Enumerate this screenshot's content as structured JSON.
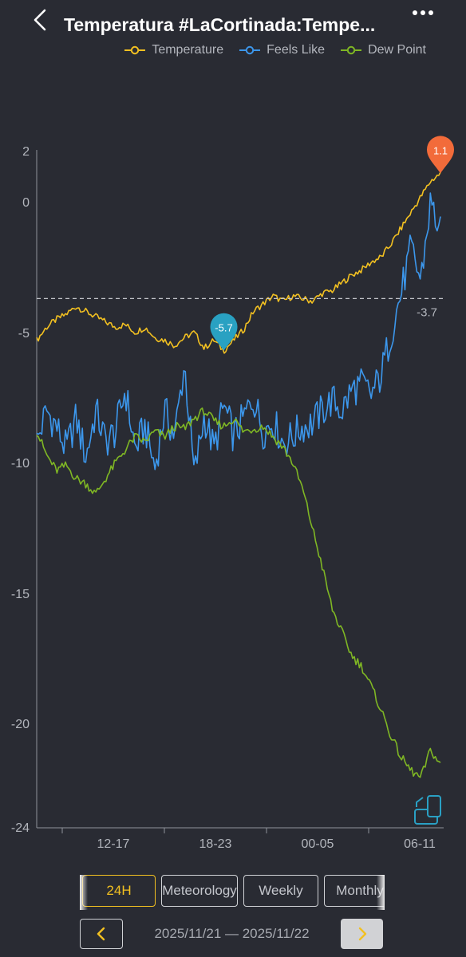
{
  "header": {
    "title": "Temperatura #LaCortinada:Tempe..."
  },
  "legend": [
    {
      "label": "Temperature",
      "color": "#f2c021"
    },
    {
      "label": "Feels Like",
      "color": "#3c97ec"
    },
    {
      "label": "Dew Point",
      "color": "#7fb724"
    }
  ],
  "chart_data": {
    "type": "line",
    "ylim": [
      -24,
      2
    ],
    "y_ticks": [
      "2",
      "0",
      "-5",
      "-10",
      "-15",
      "-20",
      "-24"
    ],
    "x_ticks": [
      "12-17",
      "18-23",
      "00-05",
      "06-11"
    ],
    "reference_line": {
      "value": -3.7,
      "label": "-3.7"
    },
    "markers": {
      "max": {
        "label": "1.1",
        "value": 1.1,
        "color": "#f26b3a"
      },
      "min": {
        "label": "-5.7",
        "value": -5.7,
        "color": "#29a1c2"
      }
    },
    "series": [
      {
        "name": "Temperature",
        "color": "#f2c021",
        "values": [
          -5.3,
          -4.8,
          -4.5,
          -4.3,
          -4.0,
          -4.2,
          -4.4,
          -4.6,
          -4.8,
          -4.7,
          -5.0,
          -4.8,
          -5.2,
          -5.3,
          -5.5,
          -5.2,
          -5.0,
          -5.6,
          -5.3,
          -5.7,
          -5.3,
          -4.9,
          -4.2,
          -3.9,
          -3.6,
          -3.8,
          -3.6,
          -3.7,
          -3.8,
          -3.5,
          -3.4,
          -3.1,
          -2.8,
          -2.6,
          -2.3,
          -2.1,
          -1.6,
          -1.0,
          -0.4,
          0.2,
          0.8,
          1.1
        ]
      },
      {
        "name": "Feels Like",
        "color": "#3c97ec",
        "values": [
          -9.2,
          -8.0,
          -8.6,
          -9.5,
          -8.3,
          -9.8,
          -8.0,
          -9.2,
          -8.8,
          -7.2,
          -9.5,
          -8.6,
          -10.2,
          -8.0,
          -9.0,
          -6.2,
          -10.5,
          -8.2,
          -9.5,
          -7.8,
          -9.0,
          -8.3,
          -7.5,
          -8.8,
          -8.4,
          -9.2,
          -9.0,
          -8.6,
          -8.5,
          -8.0,
          -7.6,
          -8.0,
          -7.2,
          -7.0,
          -7.4,
          -6.6,
          -5.0,
          -3.5,
          -1.8,
          -3.0,
          0.0,
          -1.2
        ]
      },
      {
        "name": "Dew Point",
        "color": "#7fb724",
        "values": [
          -8.8,
          -9.7,
          -10.3,
          -10.1,
          -10.6,
          -10.8,
          -11.2,
          -10.6,
          -10.0,
          -9.5,
          -9.0,
          -9.2,
          -8.8,
          -9.0,
          -8.6,
          -8.7,
          -8.3,
          -8.0,
          -8.4,
          -8.6,
          -8.3,
          -8.8,
          -8.7,
          -8.6,
          -9.0,
          -9.4,
          -10.0,
          -11.0,
          -12.5,
          -14.0,
          -15.6,
          -16.5,
          -17.4,
          -17.8,
          -18.6,
          -19.5,
          -20.5,
          -21.3,
          -21.8,
          -22.1,
          -21.0,
          -21.6
        ]
      }
    ]
  },
  "tabs": [
    {
      "label": "24H",
      "active": true
    },
    {
      "label": "Meteorology",
      "active": false
    },
    {
      "label": "Weekly",
      "active": false
    },
    {
      "label": "Monthly",
      "active": false
    }
  ],
  "date_nav": {
    "range": "2025/11/21 — 2025/11/22"
  }
}
